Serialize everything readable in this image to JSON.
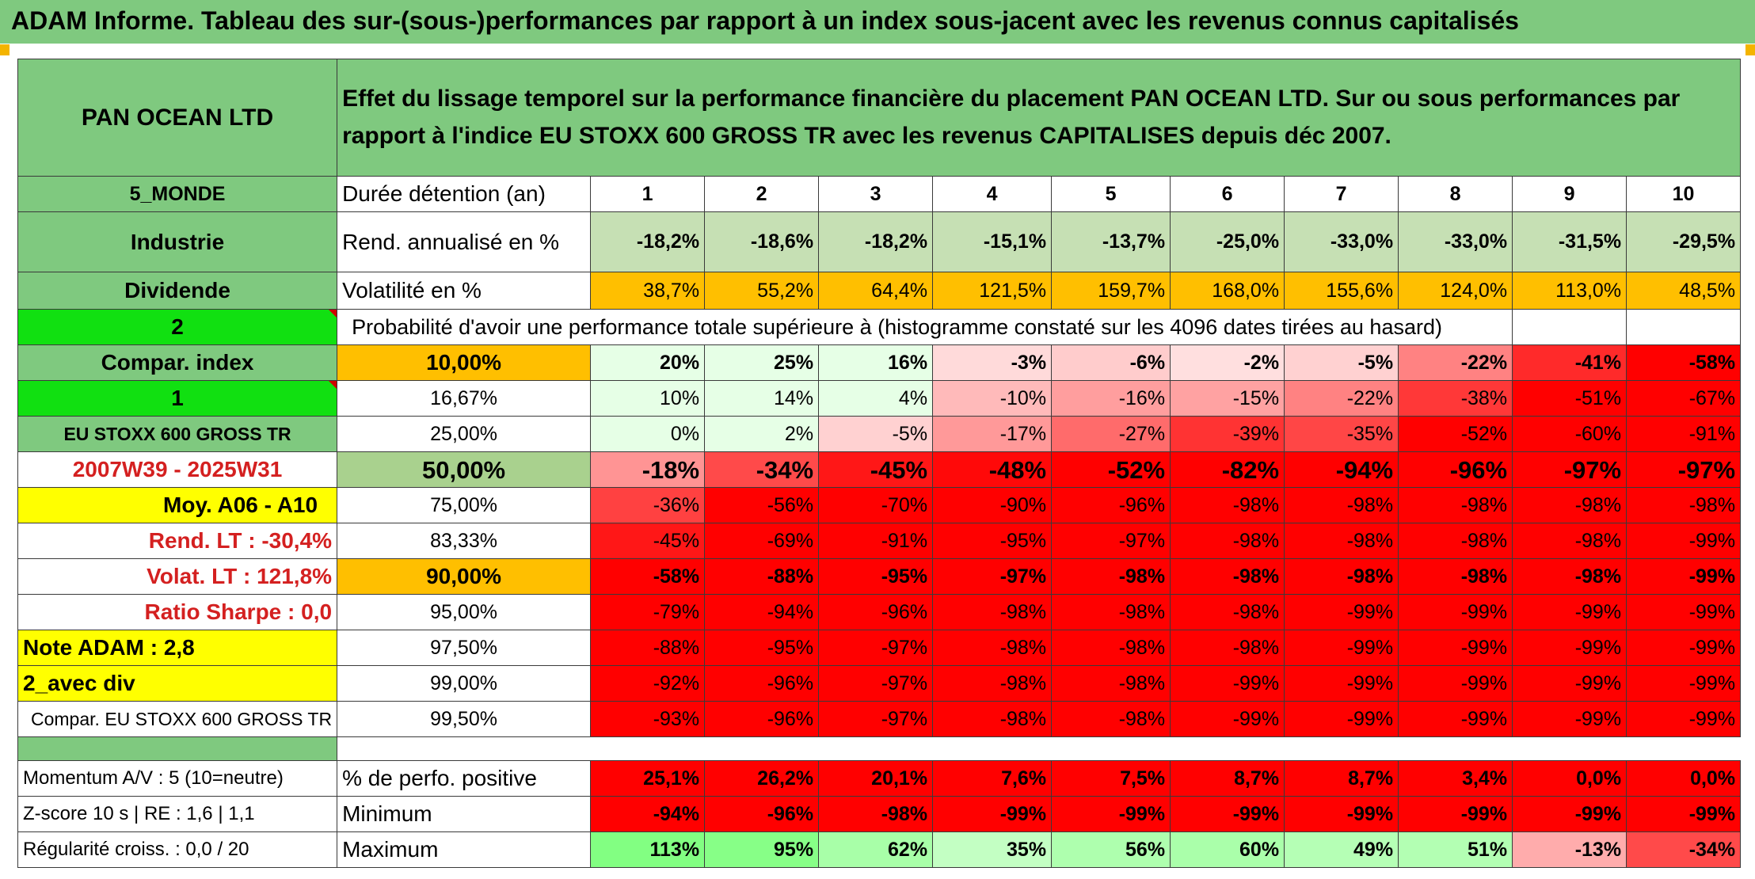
{
  "header": {
    "title": "ADAM Informe. Tableau des sur-(sous-)performances par rapport à un index sous-jacent avec les revenus connus capitalisés"
  },
  "side": {
    "asset_name": "PAN OCEAN LTD",
    "region": "5_MONDE",
    "sector": "Industrie",
    "dividend": "Dividende",
    "code_2": "2",
    "compar_index": "Compar. index",
    "code_1": "1",
    "index_name": "EU STOXX 600 GROSS TR",
    "period": "2007W39 - 2025W31",
    "moy": "Moy. A06 - A10",
    "rend_lt": "Rend. LT :   -30,4%",
    "volat_lt": "Volat. LT :   121,8%",
    "sharpe": "Ratio Sharpe :    0,0",
    "note_adam": "Note ADAM : 2,8",
    "avec_div": "2_avec div",
    "compar_full": "Compar. EU STOXX 600 GROSS TR",
    "momentum": "Momentum A/V : 5 (10=neutre)",
    "zscore": "Z-score 10 s | RE : 1,6 | 1,1",
    "regularite": "Régularité croiss. : 0,0 / 20"
  },
  "description": "Effet du lissage temporel sur la performance financière du placement PAN OCEAN LTD. Sur ou sous performances par rapport à l'indice EU STOXX 600 GROSS TR avec les revenus CAPITALISES depuis déc 2007.",
  "labels": {
    "duree": "Durée détention (an)",
    "rend": "Rend. annualisé en %",
    "vol": "Volatilité en %",
    "prob": "Probabilité d'avoir une performance totale supérieure à (histogramme constaté sur les 4096 dates tirées au hasard)",
    "pos": "% de perfo. positive",
    "min": "Minimum",
    "max": "Maximum"
  },
  "years": [
    "1",
    "2",
    "3",
    "4",
    "5",
    "6",
    "7",
    "8",
    "9",
    "10"
  ],
  "rend": [
    "-18,2%",
    "-18,6%",
    "-18,2%",
    "-15,1%",
    "-13,7%",
    "-25,0%",
    "-33,0%",
    "-33,0%",
    "-31,5%",
    "-29,5%"
  ],
  "vol": [
    "38,7%",
    "55,2%",
    "64,4%",
    "121,5%",
    "159,7%",
    "168,0%",
    "155,6%",
    "124,0%",
    "113,0%",
    "48,5%"
  ],
  "prob_rows": [
    {
      "p": "10,00%",
      "v": [
        "20%",
        "25%",
        "16%",
        "-3%",
        "-6%",
        "-2%",
        "-5%",
        "-22%",
        "-41%",
        "-58%"
      ]
    },
    {
      "p": "16,67%",
      "v": [
        "10%",
        "14%",
        "4%",
        "-10%",
        "-16%",
        "-15%",
        "-22%",
        "-38%",
        "-51%",
        "-67%"
      ]
    },
    {
      "p": "25,00%",
      "v": [
        "0%",
        "2%",
        "-5%",
        "-17%",
        "-27%",
        "-39%",
        "-35%",
        "-52%",
        "-60%",
        "-91%"
      ]
    },
    {
      "p": "50,00%",
      "v": [
        "-18%",
        "-34%",
        "-45%",
        "-48%",
        "-52%",
        "-82%",
        "-94%",
        "-96%",
        "-97%",
        "-97%"
      ]
    },
    {
      "p": "75,00%",
      "v": [
        "-36%",
        "-56%",
        "-70%",
        "-90%",
        "-96%",
        "-98%",
        "-98%",
        "-98%",
        "-98%",
        "-98%"
      ]
    },
    {
      "p": "83,33%",
      "v": [
        "-45%",
        "-69%",
        "-91%",
        "-95%",
        "-97%",
        "-98%",
        "-98%",
        "-98%",
        "-98%",
        "-99%"
      ]
    },
    {
      "p": "90,00%",
      "v": [
        "-58%",
        "-88%",
        "-95%",
        "-97%",
        "-98%",
        "-98%",
        "-98%",
        "-98%",
        "-98%",
        "-99%"
      ]
    },
    {
      "p": "95,00%",
      "v": [
        "-79%",
        "-94%",
        "-96%",
        "-98%",
        "-98%",
        "-98%",
        "-99%",
        "-99%",
        "-99%",
        "-99%"
      ]
    },
    {
      "p": "97,50%",
      "v": [
        "-88%",
        "-95%",
        "-97%",
        "-98%",
        "-98%",
        "-98%",
        "-99%",
        "-99%",
        "-99%",
        "-99%"
      ]
    },
    {
      "p": "99,00%",
      "v": [
        "-92%",
        "-96%",
        "-97%",
        "-98%",
        "-98%",
        "-99%",
        "-99%",
        "-99%",
        "-99%",
        "-99%"
      ]
    },
    {
      "p": "99,50%",
      "v": [
        "-93%",
        "-96%",
        "-97%",
        "-98%",
        "-98%",
        "-99%",
        "-99%",
        "-99%",
        "-99%",
        "-99%"
      ]
    }
  ],
  "pos": [
    "25,1%",
    "26,2%",
    "20,1%",
    "7,6%",
    "7,5%",
    "8,7%",
    "8,7%",
    "3,4%",
    "0,0%",
    "0,0%"
  ],
  "min": [
    "-94%",
    "-96%",
    "-98%",
    "-99%",
    "-99%",
    "-99%",
    "-99%",
    "-99%",
    "-99%",
    "-99%"
  ],
  "max": [
    "113%",
    "95%",
    "62%",
    "35%",
    "56%",
    "60%",
    "49%",
    "51%",
    "-13%",
    "-34%"
  ],
  "colors": {
    "header_green": "#7fc97f",
    "lime": "#11e011",
    "yellow": "#ffff00",
    "orange": "#ffbf00",
    "light_green": "#a9d18e",
    "red_text": "#d42020",
    "rend_cells": "#c6e0b4",
    "heat_positive": "#e6ffe6",
    "heat_negative_max": "#ff0000"
  }
}
